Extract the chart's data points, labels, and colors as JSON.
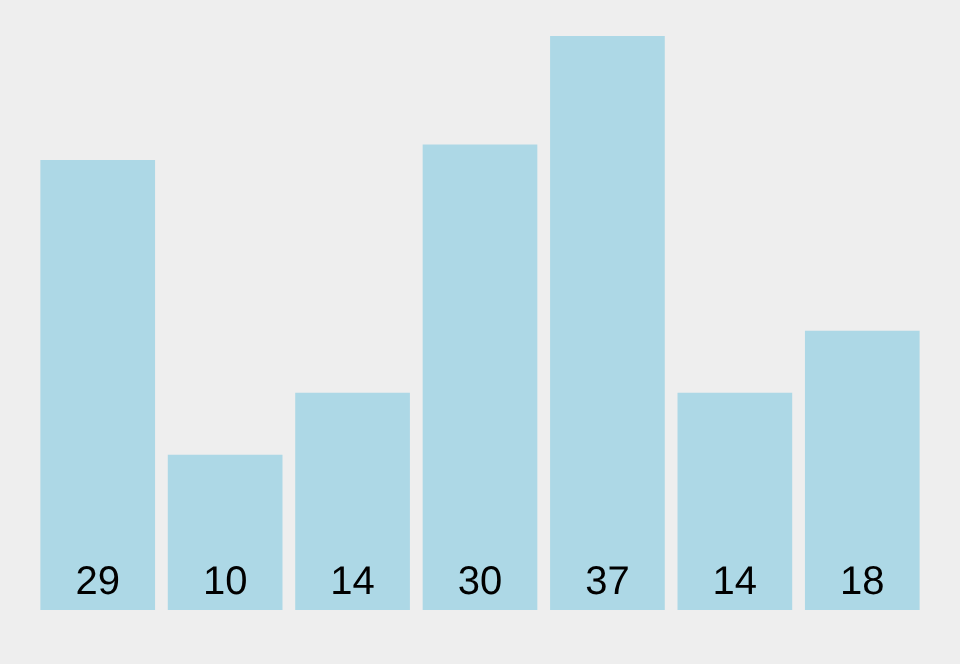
{
  "chart_data": {
    "type": "bar",
    "categories": [
      null,
      null,
      null,
      null,
      null,
      null,
      null
    ],
    "values": [
      29,
      10,
      14,
      30,
      37,
      14,
      18
    ],
    "color": "#add8e6",
    "data_labels": true
  }
}
